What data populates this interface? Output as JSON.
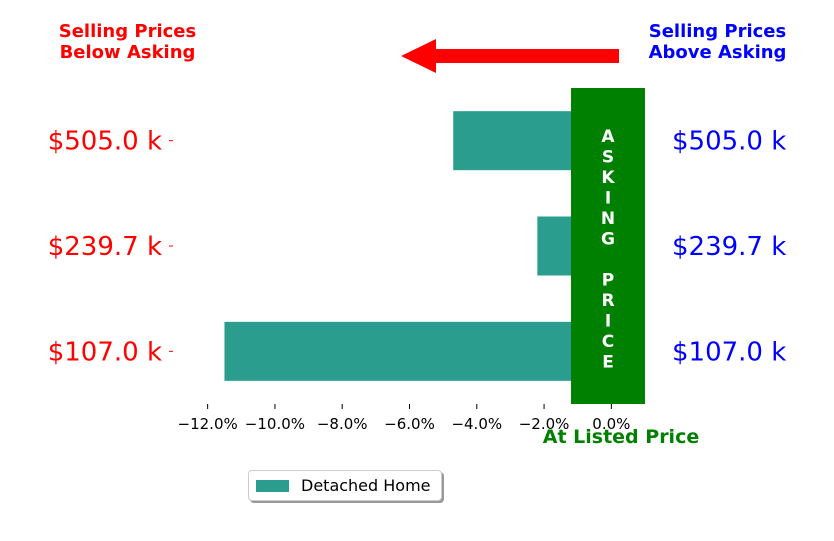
{
  "headers": {
    "below_line1": "Selling Prices",
    "below_line2": "Below Asking",
    "above_line1": "Selling Prices",
    "above_line2": "Above Asking"
  },
  "listed_label": "At Listed Price",
  "asking_text": [
    "A",
    "S",
    "K",
    "I",
    "N",
    "G",
    "",
    "P",
    "R",
    "I",
    "C",
    "E"
  ],
  "colors": {
    "bar": "#2a9d8f",
    "asking": "#008000",
    "arrow": "#ff0000",
    "left_labels": "#ff0000",
    "right_labels": "#0000ff"
  },
  "chart_data": {
    "type": "bar",
    "orientation": "horizontal",
    "xlim": [
      -13,
      1
    ],
    "x_ticks": [
      -12,
      -10,
      -8,
      -6,
      -4,
      -2,
      0
    ],
    "x_tick_labels": [
      "−12.0%",
      "−10.0%",
      "−8.0%",
      "−6.0%",
      "−4.0%",
      "−2.0%",
      "0.0%"
    ],
    "y_tick_labels": [
      "$107.0 k",
      "$239.7 k",
      "$505.0 k"
    ],
    "categories": [
      "$107.0 k",
      "$239.7 k",
      "$505.0 k"
    ],
    "bar_category_positions": [
      1.0,
      2.0,
      3.0
    ],
    "series": [
      {
        "name": "Detached Home",
        "values": [
          -11.5,
          -2.2,
          -4.7
        ]
      }
    ],
    "legend_position": "bottom"
  }
}
